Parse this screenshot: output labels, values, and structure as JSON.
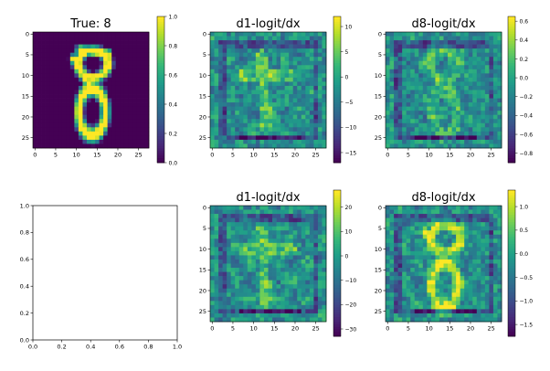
{
  "figure": {
    "description_free": true
  },
  "colormap": {
    "name": "viridis",
    "stops": [
      "#440154",
      "#482878",
      "#3e4989",
      "#31688e",
      "#26828e",
      "#1f9e89",
      "#35b779",
      "#6ece58",
      "#b5de2b",
      "#fde725"
    ]
  },
  "chart_data": [
    {
      "type": "heatmap",
      "title": "True: 8",
      "xlabel": "",
      "ylabel": "",
      "grid": "28x28 pixel intensities (MNIST digit 8)",
      "x_ticks": [
        "0",
        "5",
        "10",
        "15",
        "20",
        "25"
      ],
      "y_ticks": [
        "0",
        "5",
        "10",
        "15",
        "20",
        "25"
      ],
      "colorbar": {
        "range": [
          0.0,
          1.0
        ],
        "ticks": [
          "0.0",
          "0.2",
          "0.4",
          "0.6",
          "0.8",
          "1.0"
        ]
      }
    },
    {
      "type": "heatmap",
      "title": "d1-logit/dx",
      "xlabel": "",
      "ylabel": "",
      "grid": "28x28 gradient map",
      "x_ticks": [
        "0",
        "5",
        "10",
        "15",
        "20",
        "25"
      ],
      "y_ticks": [
        "0",
        "5",
        "10",
        "15",
        "20",
        "25"
      ],
      "colorbar": {
        "range": [
          -17,
          12
        ],
        "ticks": [
          "10",
          "5",
          "0",
          "−5",
          "−10",
          "−15"
        ]
      }
    },
    {
      "type": "heatmap",
      "title": "d8-logit/dx",
      "xlabel": "",
      "ylabel": "",
      "grid": "28x28 gradient map",
      "x_ticks": [
        "0",
        "5",
        "10",
        "15",
        "20",
        "25"
      ],
      "y_ticks": [
        "0",
        "5",
        "10",
        "15",
        "20",
        "25"
      ],
      "colorbar": {
        "range": [
          -0.9,
          0.65
        ],
        "ticks": [
          "0.6",
          "0.4",
          "0.2",
          "0.0",
          "−0.2",
          "−0.4",
          "−0.6",
          "−0.8"
        ]
      }
    },
    {
      "type": "scatter",
      "title": "",
      "xlabel": "",
      "ylabel": "",
      "x": [],
      "y": [],
      "xlim": [
        0.0,
        1.0
      ],
      "ylim": [
        0.0,
        1.0
      ],
      "x_ticks": [
        "0.0",
        "0.2",
        "0.4",
        "0.6",
        "0.8",
        "1.0"
      ],
      "y_ticks": [
        "0.0",
        "0.2",
        "0.4",
        "0.6",
        "0.8",
        "1.0"
      ]
    },
    {
      "type": "heatmap",
      "title": "d1-logit/dx",
      "xlabel": "",
      "ylabel": "",
      "grid": "28x28 gradient map",
      "x_ticks": [
        "0",
        "5",
        "10",
        "15",
        "20",
        "25"
      ],
      "y_ticks": [
        "0",
        "5",
        "10",
        "15",
        "20",
        "25"
      ],
      "colorbar": {
        "range": [
          -33,
          27
        ],
        "ticks": [
          "20",
          "10",
          "0",
          "−10",
          "−20",
          "−30"
        ]
      }
    },
    {
      "type": "heatmap",
      "title": "d8-logit/dx",
      "xlabel": "",
      "ylabel": "",
      "grid": "28x28 gradient map",
      "x_ticks": [
        "0",
        "5",
        "10",
        "15",
        "20",
        "25"
      ],
      "y_ticks": [
        "0",
        "5",
        "10",
        "15",
        "20",
        "25"
      ],
      "colorbar": {
        "range": [
          -1.75,
          1.35
        ],
        "ticks": [
          "1.0",
          "0.5",
          "0.0",
          "−0.5",
          "−1.0",
          "−1.5"
        ]
      }
    }
  ]
}
